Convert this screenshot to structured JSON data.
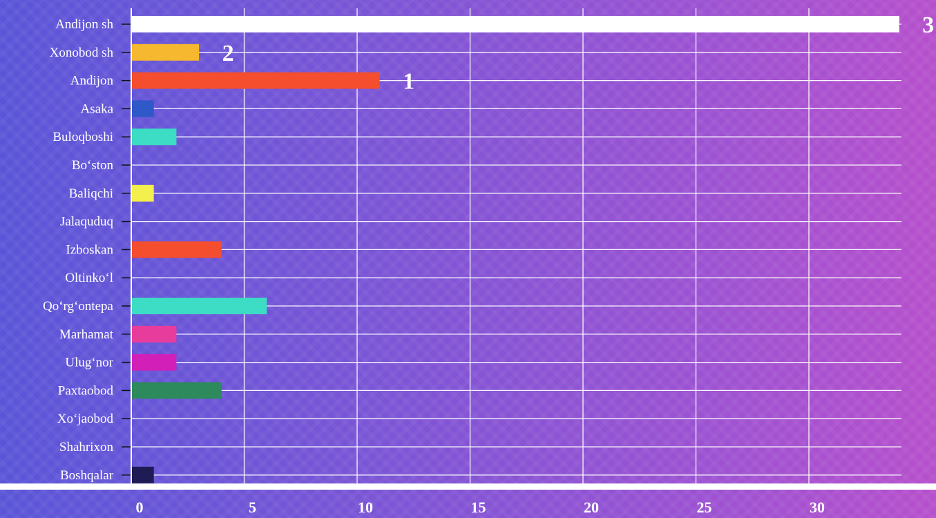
{
  "chart_data": {
    "type": "bar",
    "orientation": "horizontal",
    "categories": [
      "Andijon sh",
      "Xonobod sh",
      "Andijon",
      "Asaka",
      "Buloqboshi",
      "Bo‘ston",
      "Baliqchi",
      "Jalaquduq",
      "Izboskan",
      "Oltinko‘l",
      "Qo‘rg‘ontepa",
      "Marhamat",
      "Ulug‘nor",
      "Paxtaobod",
      "Xo‘jaobod",
      "Shahrixon",
      "Boshqalar"
    ],
    "values": [
      34,
      3,
      11,
      1,
      2,
      0,
      1,
      0,
      4,
      0,
      6,
      2,
      2,
      4,
      0,
      0,
      1
    ],
    "colors": [
      "#ffffff",
      "#f5b82e",
      "#f44e2e",
      "#2f58c8",
      "#3ddcc4",
      "#ffffff",
      "#f3ef4c",
      "#ffffff",
      "#f44e2e",
      "#ffffff",
      "#3ddcc4",
      "#e83c9c",
      "#d21fb8",
      "#2d8a5c",
      "#ffffff",
      "#ffffff",
      "#1f1c55"
    ],
    "bar_labels": [
      {
        "category": "Andijon sh",
        "text": "3"
      },
      {
        "category": "Xonobod sh",
        "text": "2"
      },
      {
        "category": "Andijon",
        "text": "1"
      }
    ],
    "xticks": [
      0,
      5,
      10,
      15,
      20,
      25,
      30
    ],
    "xlim": [
      0,
      34
    ],
    "title": "",
    "xlabel": "",
    "ylabel": "",
    "grid": true
  }
}
